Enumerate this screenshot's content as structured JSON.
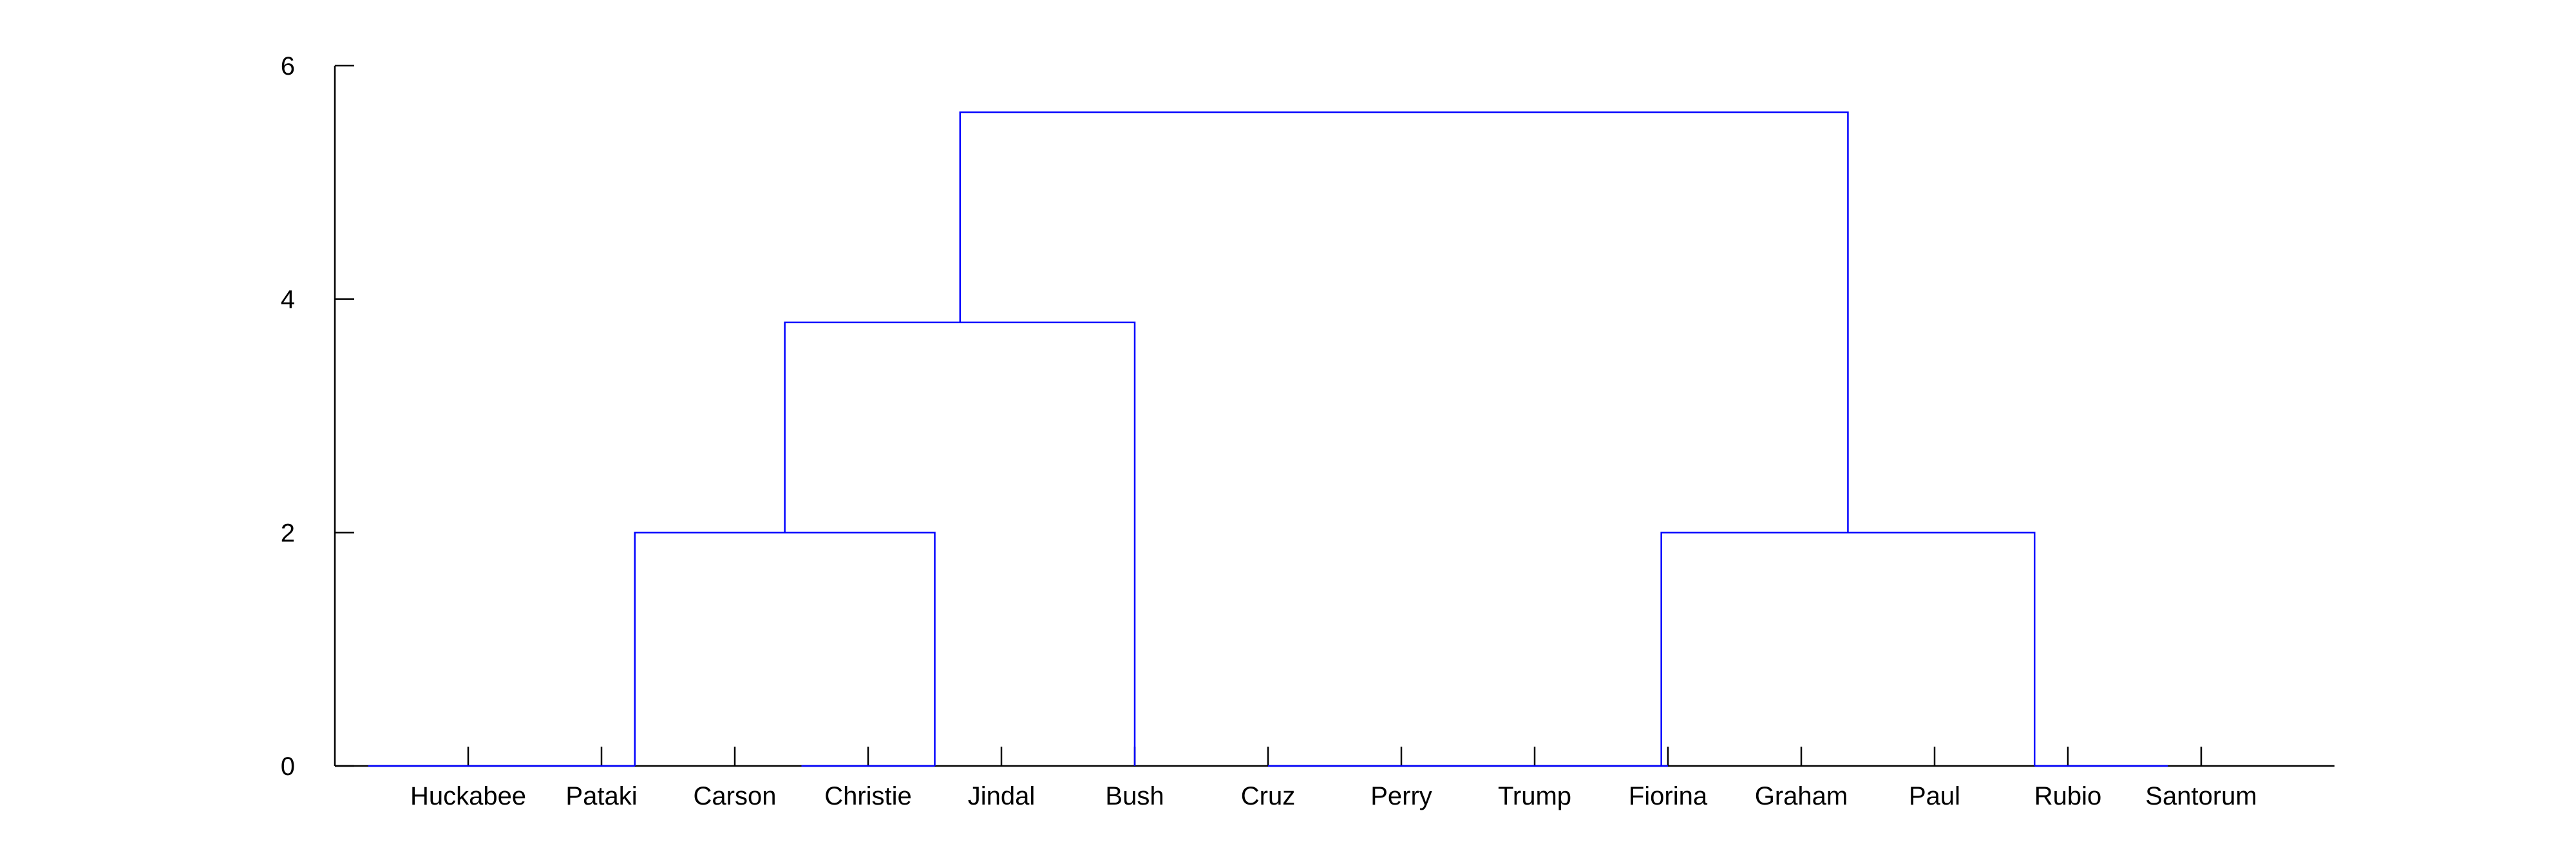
{
  "chart_data": {
    "type": "dendrogram",
    "title": "",
    "xlabel": "",
    "ylabel": "",
    "ylim": [
      0,
      6
    ],
    "yticks": [
      0,
      2,
      4,
      6
    ],
    "leaves": [
      "Huckabee",
      "Pataki",
      "Carson",
      "Christie",
      "Jindal",
      "Bush",
      "Cruz",
      "Perry",
      "Trump",
      "Fiorina",
      "Graham",
      "Paul",
      "Rubio",
      "Santorum"
    ],
    "merges": [
      {
        "left": "Huckabee",
        "right": "Pataki",
        "height": 0
      },
      {
        "left": "Huckabee+Pataki",
        "right": "Carson",
        "height": 0
      },
      {
        "left": "Christie",
        "right": "Jindal",
        "height": 0
      },
      {
        "left": "Huckabee+Pataki+Carson",
        "right": "Christie+Jindal",
        "height": 2
      },
      {
        "left": "Cruz",
        "right": "Perry",
        "height": 0
      },
      {
        "left": "Cruz+Perry",
        "right": "Trump",
        "height": 0
      },
      {
        "left": "Cruz+Perry+Trump",
        "right": "Fiorina",
        "height": 0
      },
      {
        "left": "Graham",
        "right": "Paul",
        "height": 0
      },
      {
        "left": "Graham+Paul",
        "right": "Rubio",
        "height": 0
      },
      {
        "left": "Rubio group",
        "right": "Santorum",
        "height": 0
      },
      {
        "left": "Huckabee…Jindal",
        "right": "Bush",
        "height": 3.8
      },
      {
        "left": "Cruz…Fiorina",
        "right": "Graham…Santorum",
        "height": 2
      },
      {
        "left": "Huckabee…Bush",
        "right": "Cruz…Santorum",
        "height": 5.6
      }
    ],
    "links": [
      {
        "x": [
          -0.75,
          1.25
        ],
        "y": [
          0,
          0
        ]
      },
      {
        "x": [
          1.25,
          1.25,
          3.5,
          3.5
        ],
        "y": [
          0,
          2,
          2,
          0
        ]
      },
      {
        "x": [
          2.5,
          3.5
        ],
        "y": [
          0,
          0
        ]
      },
      {
        "x": [
          2.375,
          2.375,
          5,
          5
        ],
        "y": [
          2,
          3.8,
          3.8,
          0
        ]
      },
      {
        "x": [
          6,
          9
        ],
        "y": [
          0,
          0
        ]
      },
      {
        "x": [
          8.95,
          8.95,
          11.75,
          11.75
        ],
        "y": [
          0,
          2,
          2,
          0
        ]
      },
      {
        "x": [
          11.75,
          12.75
        ],
        "y": [
          0,
          0
        ]
      },
      {
        "x": [
          10.35,
          10.35,
          3.69,
          3.69
        ],
        "y": [
          2,
          5.6,
          5.6,
          3.8
        ]
      }
    ],
    "grid": false,
    "legend": "none",
    "colors": {
      "link": "#0000ff",
      "axis": "#000000"
    }
  }
}
